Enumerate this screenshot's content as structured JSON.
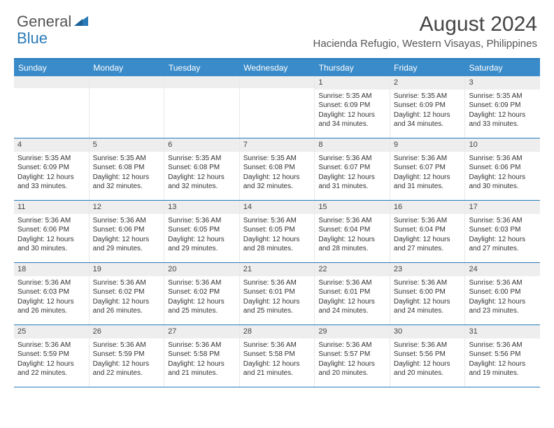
{
  "logo": {
    "word1": "General",
    "word2": "Blue"
  },
  "colors": {
    "accent": "#3a8bc9",
    "border": "#2a7ab8",
    "header_text": "#ffffff",
    "daynum_bg": "#eeeeee",
    "body_text": "#333333"
  },
  "title": "August 2024",
  "location": "Hacienda Refugio, Western Visayas, Philippines",
  "day_headers": [
    "Sunday",
    "Monday",
    "Tuesday",
    "Wednesday",
    "Thursday",
    "Friday",
    "Saturday"
  ],
  "weeks": [
    [
      {
        "n": "",
        "sr": "",
        "ss": "",
        "dl": ""
      },
      {
        "n": "",
        "sr": "",
        "ss": "",
        "dl": ""
      },
      {
        "n": "",
        "sr": "",
        "ss": "",
        "dl": ""
      },
      {
        "n": "",
        "sr": "",
        "ss": "",
        "dl": ""
      },
      {
        "n": "1",
        "sr": "Sunrise: 5:35 AM",
        "ss": "Sunset: 6:09 PM",
        "dl": "Daylight: 12 hours and 34 minutes."
      },
      {
        "n": "2",
        "sr": "Sunrise: 5:35 AM",
        "ss": "Sunset: 6:09 PM",
        "dl": "Daylight: 12 hours and 34 minutes."
      },
      {
        "n": "3",
        "sr": "Sunrise: 5:35 AM",
        "ss": "Sunset: 6:09 PM",
        "dl": "Daylight: 12 hours and 33 minutes."
      }
    ],
    [
      {
        "n": "4",
        "sr": "Sunrise: 5:35 AM",
        "ss": "Sunset: 6:09 PM",
        "dl": "Daylight: 12 hours and 33 minutes."
      },
      {
        "n": "5",
        "sr": "Sunrise: 5:35 AM",
        "ss": "Sunset: 6:08 PM",
        "dl": "Daylight: 12 hours and 32 minutes."
      },
      {
        "n": "6",
        "sr": "Sunrise: 5:35 AM",
        "ss": "Sunset: 6:08 PM",
        "dl": "Daylight: 12 hours and 32 minutes."
      },
      {
        "n": "7",
        "sr": "Sunrise: 5:35 AM",
        "ss": "Sunset: 6:08 PM",
        "dl": "Daylight: 12 hours and 32 minutes."
      },
      {
        "n": "8",
        "sr": "Sunrise: 5:36 AM",
        "ss": "Sunset: 6:07 PM",
        "dl": "Daylight: 12 hours and 31 minutes."
      },
      {
        "n": "9",
        "sr": "Sunrise: 5:36 AM",
        "ss": "Sunset: 6:07 PM",
        "dl": "Daylight: 12 hours and 31 minutes."
      },
      {
        "n": "10",
        "sr": "Sunrise: 5:36 AM",
        "ss": "Sunset: 6:06 PM",
        "dl": "Daylight: 12 hours and 30 minutes."
      }
    ],
    [
      {
        "n": "11",
        "sr": "Sunrise: 5:36 AM",
        "ss": "Sunset: 6:06 PM",
        "dl": "Daylight: 12 hours and 30 minutes."
      },
      {
        "n": "12",
        "sr": "Sunrise: 5:36 AM",
        "ss": "Sunset: 6:06 PM",
        "dl": "Daylight: 12 hours and 29 minutes."
      },
      {
        "n": "13",
        "sr": "Sunrise: 5:36 AM",
        "ss": "Sunset: 6:05 PM",
        "dl": "Daylight: 12 hours and 29 minutes."
      },
      {
        "n": "14",
        "sr": "Sunrise: 5:36 AM",
        "ss": "Sunset: 6:05 PM",
        "dl": "Daylight: 12 hours and 28 minutes."
      },
      {
        "n": "15",
        "sr": "Sunrise: 5:36 AM",
        "ss": "Sunset: 6:04 PM",
        "dl": "Daylight: 12 hours and 28 minutes."
      },
      {
        "n": "16",
        "sr": "Sunrise: 5:36 AM",
        "ss": "Sunset: 6:04 PM",
        "dl": "Daylight: 12 hours and 27 minutes."
      },
      {
        "n": "17",
        "sr": "Sunrise: 5:36 AM",
        "ss": "Sunset: 6:03 PM",
        "dl": "Daylight: 12 hours and 27 minutes."
      }
    ],
    [
      {
        "n": "18",
        "sr": "Sunrise: 5:36 AM",
        "ss": "Sunset: 6:03 PM",
        "dl": "Daylight: 12 hours and 26 minutes."
      },
      {
        "n": "19",
        "sr": "Sunrise: 5:36 AM",
        "ss": "Sunset: 6:02 PM",
        "dl": "Daylight: 12 hours and 26 minutes."
      },
      {
        "n": "20",
        "sr": "Sunrise: 5:36 AM",
        "ss": "Sunset: 6:02 PM",
        "dl": "Daylight: 12 hours and 25 minutes."
      },
      {
        "n": "21",
        "sr": "Sunrise: 5:36 AM",
        "ss": "Sunset: 6:01 PM",
        "dl": "Daylight: 12 hours and 25 minutes."
      },
      {
        "n": "22",
        "sr": "Sunrise: 5:36 AM",
        "ss": "Sunset: 6:01 PM",
        "dl": "Daylight: 12 hours and 24 minutes."
      },
      {
        "n": "23",
        "sr": "Sunrise: 5:36 AM",
        "ss": "Sunset: 6:00 PM",
        "dl": "Daylight: 12 hours and 24 minutes."
      },
      {
        "n": "24",
        "sr": "Sunrise: 5:36 AM",
        "ss": "Sunset: 6:00 PM",
        "dl": "Daylight: 12 hours and 23 minutes."
      }
    ],
    [
      {
        "n": "25",
        "sr": "Sunrise: 5:36 AM",
        "ss": "Sunset: 5:59 PM",
        "dl": "Daylight: 12 hours and 22 minutes."
      },
      {
        "n": "26",
        "sr": "Sunrise: 5:36 AM",
        "ss": "Sunset: 5:59 PM",
        "dl": "Daylight: 12 hours and 22 minutes."
      },
      {
        "n": "27",
        "sr": "Sunrise: 5:36 AM",
        "ss": "Sunset: 5:58 PM",
        "dl": "Daylight: 12 hours and 21 minutes."
      },
      {
        "n": "28",
        "sr": "Sunrise: 5:36 AM",
        "ss": "Sunset: 5:58 PM",
        "dl": "Daylight: 12 hours and 21 minutes."
      },
      {
        "n": "29",
        "sr": "Sunrise: 5:36 AM",
        "ss": "Sunset: 5:57 PM",
        "dl": "Daylight: 12 hours and 20 minutes."
      },
      {
        "n": "30",
        "sr": "Sunrise: 5:36 AM",
        "ss": "Sunset: 5:56 PM",
        "dl": "Daylight: 12 hours and 20 minutes."
      },
      {
        "n": "31",
        "sr": "Sunrise: 5:36 AM",
        "ss": "Sunset: 5:56 PM",
        "dl": "Daylight: 12 hours and 19 minutes."
      }
    ]
  ]
}
